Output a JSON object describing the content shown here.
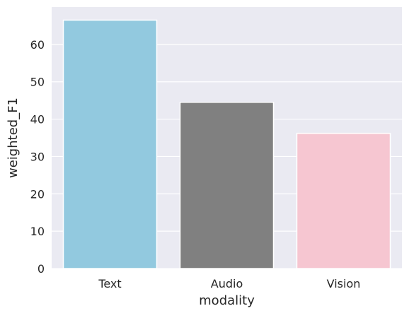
{
  "chart_data": {
    "type": "bar",
    "categories": [
      "Text",
      "Audio",
      "Vision"
    ],
    "values": [
      66.5,
      44.5,
      36.2
    ],
    "colors": [
      "#92c9df",
      "#808080",
      "#f6c6d1"
    ],
    "background": "#eaeaf2",
    "grid_color": "#ffffff",
    "title": "",
    "xlabel": "modality",
    "ylabel": "weighted_F1",
    "ylim": [
      0,
      70
    ],
    "yticks": [
      0,
      10,
      20,
      30,
      40,
      50,
      60
    ],
    "grid": true
  }
}
